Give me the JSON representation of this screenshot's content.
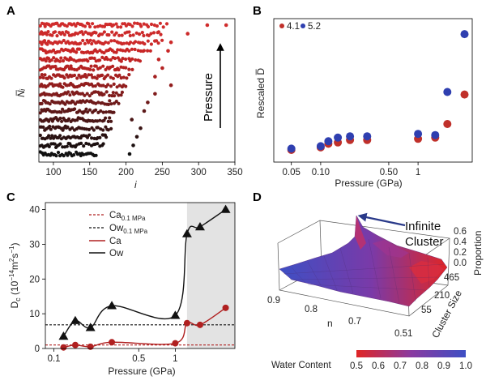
{
  "chart_data": [
    {
      "panel": "A",
      "type": "scatter",
      "xlabel": "i",
      "ylabel": "N̅ᵢ",
      "xticks": [
        "100",
        "150",
        "200",
        "250",
        "300",
        "350"
      ],
      "xlim": [
        80,
        350
      ],
      "annotation": "Pressure",
      "rows": [
        {
          "level": 0,
          "xmax": 160,
          "color": "#111111",
          "extra": [
            205
          ]
        },
        {
          "level": 1,
          "xmax": 170,
          "color": "#1c1010",
          "extra": [
            210
          ]
        },
        {
          "level": 2,
          "xmax": 175,
          "color": "#2a1212",
          "extra": [
            215
          ]
        },
        {
          "level": 3,
          "xmax": 180,
          "color": "#3a1414",
          "extra": [
            220
          ]
        },
        {
          "level": 4,
          "xmax": 180,
          "color": "#4a1616",
          "extra": [
            208
          ]
        },
        {
          "level": 5,
          "xmax": 185,
          "color": "#5c1818",
          "extra": [
            225
          ]
        },
        {
          "level": 6,
          "xmax": 190,
          "color": "#6e1a1a",
          "extra": [
            230
          ]
        },
        {
          "level": 7,
          "xmax": 195,
          "color": "#801c1c",
          "extra": [
            240
          ]
        },
        {
          "level": 8,
          "xmax": 200,
          "color": "#921e1e",
          "extra": [
            262
          ]
        },
        {
          "level": 9,
          "xmax": 205,
          "color": "#a42020",
          "extra": [
            240
          ]
        },
        {
          "level": 10,
          "xmax": 210,
          "color": "#b42222",
          "extra": [
            250
          ]
        },
        {
          "level": 11,
          "xmax": 220,
          "color": "#c02424",
          "extra": [
            245
          ]
        },
        {
          "level": 12,
          "xmax": 235,
          "color": "#c82626",
          "extra": [
            258
          ]
        },
        {
          "level": 13,
          "xmax": 250,
          "color": "#cc2a2a",
          "extra": [
            262
          ]
        },
        {
          "level": 14,
          "xmax": 250,
          "color": "#cc2a2a",
          "extra": [
            285
          ]
        },
        {
          "level": 15,
          "xmax": 260,
          "color": "#d02c2c",
          "extra": [
            312,
            338
          ]
        }
      ]
    },
    {
      "panel": "B",
      "type": "scatter",
      "xlabel": "Pressure (GPa)",
      "ylabel": "Rescaled D̅",
      "xscale": "log",
      "xticks": [
        "0.05",
        "0.10",
        "0.50",
        "1"
      ],
      "legend": [
        "4.1",
        "5.2"
      ],
      "series": [
        {
          "name": "4.1",
          "color": "#c0302a",
          "x": [
            0.05,
            0.1,
            0.12,
            0.15,
            0.2,
            0.3,
            1.0,
            1.5,
            2.0,
            3.0
          ],
          "y": [
            0.02,
            0.04,
            0.07,
            0.08,
            0.1,
            0.1,
            0.11,
            0.12,
            0.23,
            0.47
          ]
        },
        {
          "name": "5.2",
          "color": "#2f3fb0",
          "x": [
            0.05,
            0.1,
            0.12,
            0.15,
            0.2,
            0.3,
            1.0,
            1.5,
            2.0,
            3.0
          ],
          "y": [
            0.03,
            0.05,
            0.09,
            0.12,
            0.13,
            0.13,
            0.15,
            0.14,
            0.49,
            0.96
          ]
        }
      ]
    },
    {
      "panel": "C",
      "type": "line",
      "xlabel": "Pressure (GPa)",
      "ylabel": "Dᴄ (10⁻¹⁴m²s⁻¹)",
      "xscale": "log",
      "xticks": [
        "0.1",
        "0.5",
        "1"
      ],
      "yticks": [
        "0",
        "10",
        "20",
        "30",
        "40"
      ],
      "ylim": [
        0,
        42
      ],
      "shaded_from": 1.25,
      "series": [
        {
          "name": "Ca",
          "color": "#b02020",
          "x": [
            0.12,
            0.15,
            0.2,
            0.3,
            1.0,
            1.25,
            1.6,
            2.6
          ],
          "y": [
            0.3,
            1.0,
            0.5,
            1.8,
            1.5,
            7.3,
            6.8,
            11.7
          ]
        },
        {
          "name": "Ow",
          "color": "#111111",
          "x": [
            0.12,
            0.15,
            0.2,
            0.3,
            1.0,
            1.25,
            1.6,
            2.6
          ],
          "y": [
            3.5,
            8.0,
            6.0,
            12.3,
            9.5,
            33.0,
            35.0,
            40.0
          ]
        }
      ],
      "reference_lines": [
        {
          "name": "Ca",
          "sub": "0.1 MPa",
          "y": 1.0,
          "color": "#b02020"
        },
        {
          "name": "Ow",
          "sub": "0.1 MPa",
          "y": 6.8,
          "color": "#111111"
        }
      ]
    },
    {
      "panel": "D",
      "type": "surface",
      "xlabel": "n",
      "ylabel": "Cluster Size",
      "zlabel": "Proportion",
      "xticks": [
        "0.9",
        "0.8",
        "0.7",
        "0.51"
      ],
      "yticks": [
        "55",
        "210",
        "465"
      ],
      "zticks": [
        "0.0",
        "0.2",
        "0.4",
        "0.6"
      ],
      "annotation": "Infinite Cluster",
      "colorbar_label": "Water Content",
      "colorbar_ticks": [
        "0.5",
        "0.6",
        "0.7",
        "0.8",
        "0.9",
        "1.0"
      ],
      "colors": {
        "low": "#e02525",
        "high": "#3d4fc4"
      }
    }
  ],
  "labels": {
    "A": "A",
    "B": "B",
    "C": "C",
    "D": "D",
    "a_xlabel": "i",
    "a_ylabel": "N̅ᵢ",
    "a_pressure": "Pressure",
    "b_xlabel": "Pressure (GPa)",
    "b_ylabel": "Rescaled D̅",
    "b_leg1": "4.1",
    "b_leg2": "5.2",
    "c_xlabel": "Pressure (GPa)",
    "c_leg_ca_ref": "Ca",
    "c_leg_ca_ref_sub": "0.1 MPa",
    "c_leg_ow_ref": "Ow",
    "c_leg_ow_ref_sub": "0.1 MPa",
    "c_leg_ca": "Ca",
    "c_leg_ow": "Ow",
    "d_infinite1": "Infinite",
    "d_infinite2": "Cluster",
    "d_n": "n",
    "d_cluster": "Cluster Size",
    "d_proportion": "Proportion",
    "d_water": "Water Content"
  }
}
